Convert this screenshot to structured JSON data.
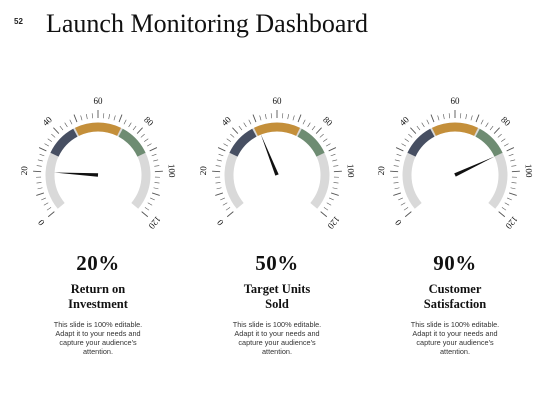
{
  "slide": {
    "number": "52",
    "title": "Launch Monitoring Dashboard"
  },
  "scale": {
    "min": 0,
    "max": 120,
    "tick_labels": [
      "0",
      "20",
      "40",
      "60",
      "80",
      "100",
      "120"
    ]
  },
  "colors": {
    "track": "#d9d9d9",
    "band_low": "#474f62",
    "band_mid": "#c48f3a",
    "band_high": "#6e8c72",
    "needle": "#111111",
    "tick": "#555555"
  },
  "gauges": [
    {
      "percent": "20%",
      "label_lines": [
        "Return on",
        "Investment"
      ],
      "needle_value": 20,
      "desc_lines": [
        "This slide is 100% editable.",
        "Adapt it to your needs and",
        "capture your audience's",
        "attention."
      ]
    },
    {
      "percent": "50%",
      "label_lines": [
        "Target Units",
        "Sold"
      ],
      "needle_value": 50,
      "desc_lines": [
        "This slide is 100% editable.",
        "Adapt it to your needs and",
        "capture your audience's",
        "attention."
      ]
    },
    {
      "percent": "90%",
      "label_lines": [
        "Customer",
        "Satisfaction"
      ],
      "needle_value": 90,
      "desc_lines": [
        "This slide is 100% editable.",
        "Adapt it to your needs and",
        "capture your audience's",
        "attention."
      ]
    }
  ]
}
